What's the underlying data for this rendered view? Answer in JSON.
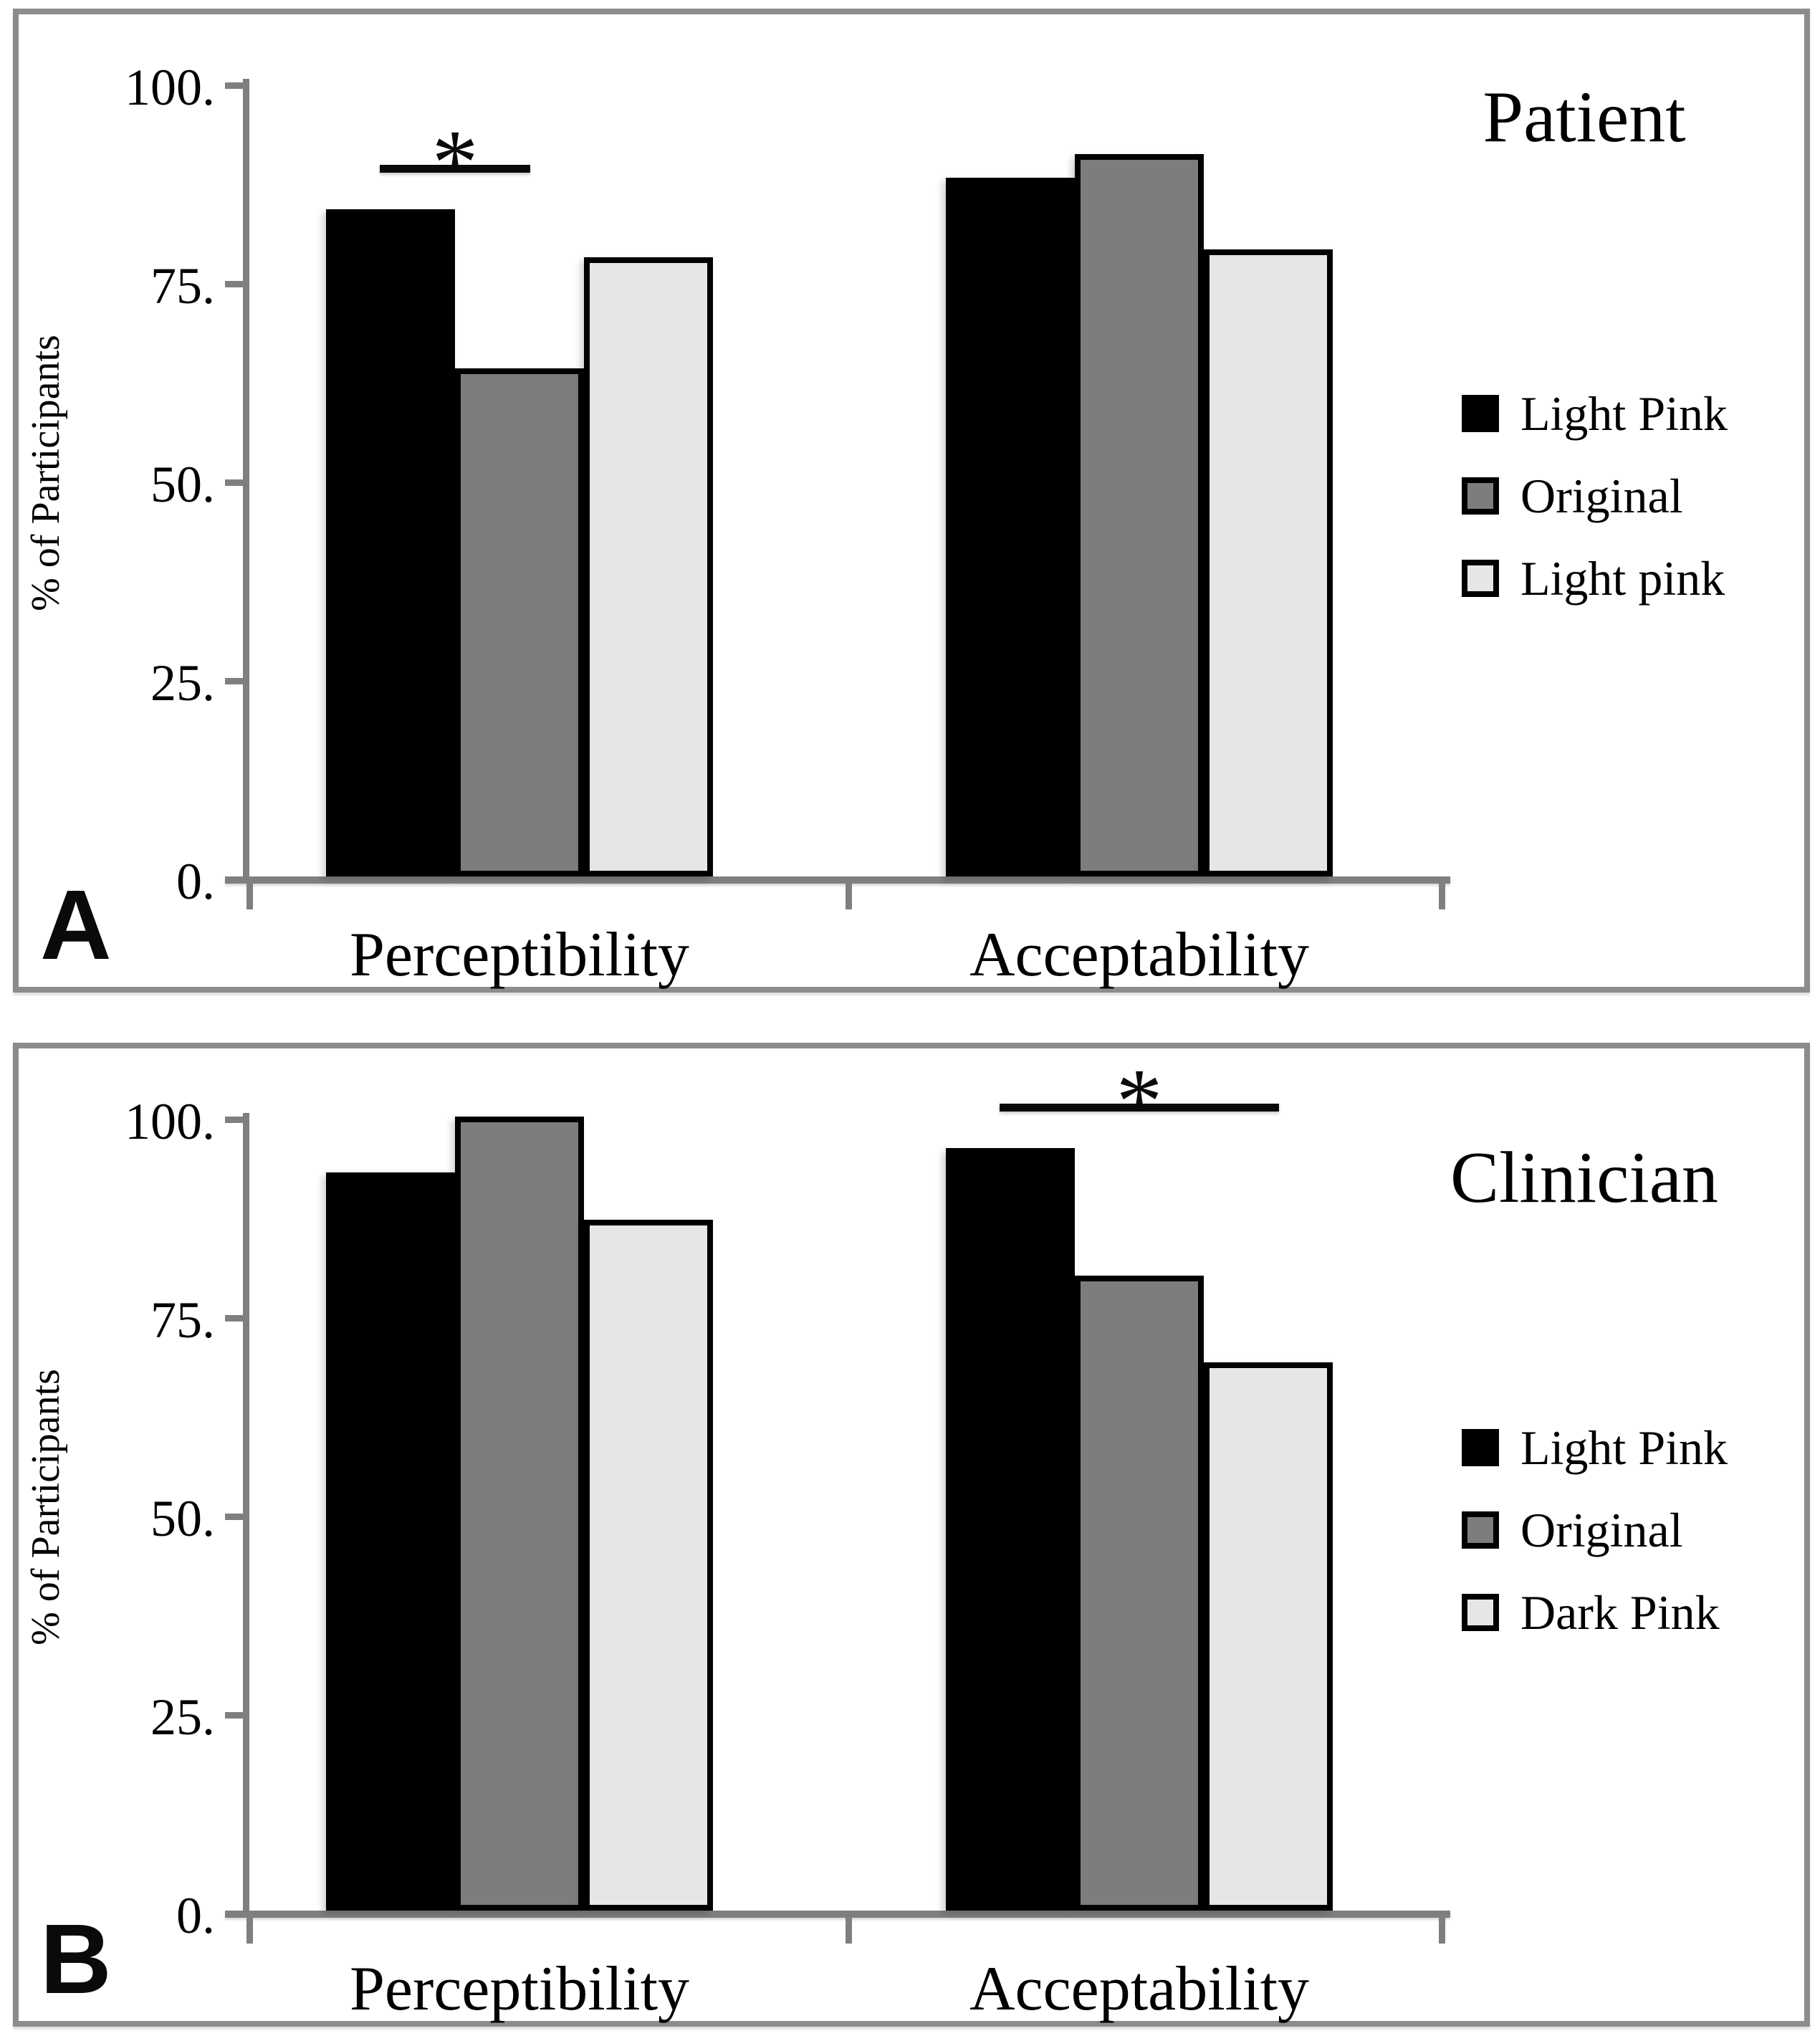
{
  "panels": [
    {
      "panel_label": "A",
      "title": "Patient",
      "y_axis_label": "% of Participants",
      "y_tick_labels": [
        "100.",
        "75.",
        "50.",
        "25.",
        "0."
      ],
      "categories": [
        "Perceptibility",
        "Acceptability"
      ],
      "legend": [
        {
          "label": "Light Pink",
          "swatch_color": "#000000"
        },
        {
          "label": "Original",
          "swatch_color": "#7d7d7d"
        },
        {
          "label": "Light pink",
          "swatch_color": "#e6e6e6"
        }
      ],
      "significance_marker": "*"
    },
    {
      "panel_label": "B",
      "title": "Clinician",
      "y_axis_label": "% of Participants",
      "y_tick_labels": [
        "100.",
        "75.",
        "50.",
        "25.",
        "0."
      ],
      "categories": [
        "Perceptibility",
        "Acceptability"
      ],
      "legend": [
        {
          "label": "Light Pink",
          "swatch_color": "#000000"
        },
        {
          "label": "Original",
          "swatch_color": "#7d7d7d"
        },
        {
          "label": "Dark Pink",
          "swatch_color": "#e6e6e6"
        }
      ],
      "significance_marker": "*"
    }
  ],
  "colors": {
    "series_black": "#000000",
    "series_gray": "#7d7d7d",
    "series_light": "#e6e6e6",
    "axis_gray": "#7f7f7f",
    "panel_border": "#8c8c8c"
  },
  "chart_data": [
    {
      "type": "bar",
      "title": "Patient",
      "categories": [
        "Perceptibility",
        "Acceptability"
      ],
      "series": [
        {
          "name": "Light Pink",
          "color": "#000000",
          "values": [
            84,
            88
          ]
        },
        {
          "name": "Original",
          "color": "#7d7d7d",
          "values": [
            64,
            91
          ]
        },
        {
          "name": "Light pink",
          "color": "#e6e6e6",
          "values": [
            78,
            79
          ]
        }
      ],
      "xlabel": "",
      "ylabel": "% of Participants",
      "ylim": [
        0,
        100
      ],
      "yticks": [
        100,
        75,
        50,
        25,
        0
      ],
      "grid": false,
      "legend_position": "right",
      "annotations": [
        {
          "text": "*",
          "category": "Perceptibility",
          "from_series": 0,
          "to_series": 1,
          "meaning": "significant difference Light Pink vs Original"
        }
      ]
    },
    {
      "type": "bar",
      "title": "Clinician",
      "categories": [
        "Perceptibility",
        "Acceptability"
      ],
      "series": [
        {
          "name": "Light Pink",
          "color": "#000000",
          "values": [
            93,
            96
          ]
        },
        {
          "name": "Original",
          "color": "#7d7d7d",
          "values": [
            100,
            80
          ]
        },
        {
          "name": "Dark Pink",
          "color": "#e6e6e6",
          "values": [
            87,
            69
          ]
        }
      ],
      "xlabel": "",
      "ylabel": "% of Participants",
      "ylim": [
        0,
        100
      ],
      "yticks": [
        100,
        75,
        50,
        25,
        0
      ],
      "grid": false,
      "legend_position": "right",
      "annotations": [
        {
          "text": "*",
          "category": "Acceptability",
          "from_series": 0,
          "to_series": 2,
          "meaning": "significant difference Light Pink vs Dark Pink"
        }
      ]
    }
  ]
}
